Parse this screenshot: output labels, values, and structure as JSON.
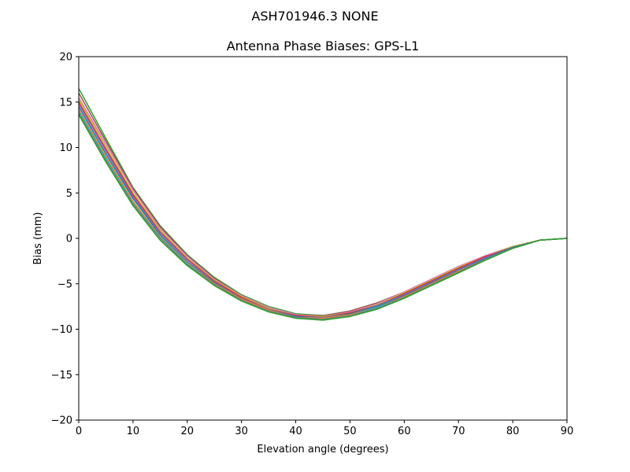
{
  "figure": {
    "suptitle": "ASH701946.3      NONE"
  },
  "chart_data": {
    "type": "line",
    "title": "Antenna Phase Biases: GPS-L1",
    "xlabel": "Elevation angle (degrees)",
    "ylabel": "Bias (mm)",
    "xlim": [
      0,
      90
    ],
    "ylim": [
      -20,
      20
    ],
    "xticks": [
      0,
      10,
      20,
      30,
      40,
      50,
      60,
      70,
      80,
      90
    ],
    "xtick_labels": [
      "0",
      "10",
      "20",
      "30",
      "40",
      "50",
      "60",
      "70",
      "80",
      "90"
    ],
    "yticks": [
      -20,
      -15,
      -10,
      -5,
      0,
      5,
      10,
      15,
      20
    ],
    "ytick_labels": [
      "−20",
      "−15",
      "−10",
      "−5",
      "0",
      "5",
      "10",
      "15",
      "20"
    ],
    "grid": false,
    "legend": "none",
    "x": [
      0,
      5,
      10,
      15,
      20,
      25,
      30,
      35,
      40,
      45,
      50,
      55,
      60,
      65,
      70,
      75,
      80,
      85,
      90
    ],
    "series": [
      {
        "color": "#2ca02c",
        "values": [
          16.5,
          11.0,
          5.6,
          1.4,
          -1.8,
          -4.3,
          -6.2,
          -7.5,
          -8.3,
          -8.5,
          -8.1,
          -7.2,
          -6.0,
          -4.6,
          -3.2,
          -2.0,
          -0.9,
          -0.2,
          0.0
        ]
      },
      {
        "color": "#8c564b",
        "values": [
          16.0,
          10.7,
          5.5,
          1.3,
          -1.9,
          -4.4,
          -6.3,
          -7.6,
          -8.4,
          -8.5,
          -8.0,
          -7.1,
          -5.9,
          -4.5,
          -3.1,
          -1.9,
          -0.9,
          -0.2,
          0.0
        ]
      },
      {
        "color": "#e377c2",
        "values": [
          15.5,
          10.4,
          5.3,
          1.1,
          -2.0,
          -4.5,
          -6.3,
          -7.6,
          -8.4,
          -8.6,
          -8.1,
          -7.2,
          -5.9,
          -4.5,
          -3.1,
          -1.9,
          -0.9,
          -0.2,
          0.0
        ]
      },
      {
        "color": "#bcbd22",
        "values": [
          15.3,
          10.1,
          5.0,
          0.9,
          -2.2,
          -4.6,
          -6.4,
          -7.7,
          -8.5,
          -8.6,
          -8.2,
          -7.3,
          -6.0,
          -4.6,
          -3.2,
          -2.0,
          -0.9,
          -0.2,
          0.0
        ]
      },
      {
        "color": "#d62728",
        "values": [
          15.0,
          9.8,
          4.8,
          0.7,
          -2.3,
          -4.7,
          -6.5,
          -7.8,
          -8.5,
          -8.7,
          -8.2,
          -7.4,
          -6.1,
          -4.7,
          -3.3,
          -2.0,
          -1.0,
          -0.2,
          0.0
        ]
      },
      {
        "color": "#9467bd",
        "values": [
          14.8,
          9.6,
          4.6,
          0.6,
          -2.4,
          -4.8,
          -6.6,
          -7.8,
          -8.6,
          -8.7,
          -8.3,
          -7.4,
          -6.2,
          -4.8,
          -3.4,
          -2.1,
          -1.0,
          -0.2,
          0.0
        ]
      },
      {
        "color": "#1f77b4",
        "values": [
          14.5,
          9.3,
          4.4,
          0.4,
          -2.6,
          -4.9,
          -6.7,
          -7.9,
          -8.6,
          -8.8,
          -8.3,
          -7.5,
          -6.3,
          -4.9,
          -3.5,
          -2.2,
          -1.0,
          -0.2,
          0.0
        ]
      },
      {
        "color": "#ff7f0e",
        "values": [
          14.2,
          9.0,
          4.1,
          0.2,
          -2.7,
          -5.0,
          -6.7,
          -7.9,
          -8.7,
          -8.8,
          -8.4,
          -7.6,
          -6.4,
          -5.0,
          -3.6,
          -2.3,
          -1.1,
          -0.2,
          0.0
        ]
      },
      {
        "color": "#17becf",
        "values": [
          14.0,
          8.8,
          3.9,
          0.1,
          -2.8,
          -5.1,
          -6.8,
          -8.0,
          -8.7,
          -8.9,
          -8.5,
          -7.6,
          -6.5,
          -5.1,
          -3.7,
          -2.3,
          -1.1,
          -0.2,
          0.0
        ]
      },
      {
        "color": "#7f7f7f",
        "values": [
          13.8,
          8.6,
          3.8,
          0.0,
          -2.9,
          -5.1,
          -6.8,
          -8.0,
          -8.7,
          -8.9,
          -8.5,
          -7.7,
          -6.5,
          -5.1,
          -3.7,
          -2.3,
          -1.1,
          -0.2,
          0.0
        ]
      },
      {
        "color": "#2ca02c",
        "values": [
          13.6,
          8.4,
          3.6,
          -0.2,
          -3.0,
          -5.2,
          -6.9,
          -8.1,
          -8.8,
          -9.0,
          -8.6,
          -7.8,
          -6.6,
          -5.2,
          -3.8,
          -2.4,
          -1.1,
          -0.2,
          0.0
        ]
      }
    ]
  }
}
